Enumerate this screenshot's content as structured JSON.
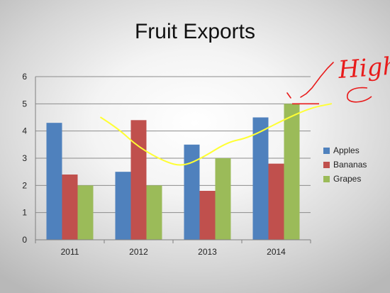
{
  "chart_data": {
    "type": "bar",
    "title": "Fruit Exports",
    "categories": [
      "2011",
      "2012",
      "2013",
      "2014"
    ],
    "series": [
      {
        "name": "Apples",
        "values": [
          4.3,
          2.5,
          3.5,
          4.5
        ],
        "color": "#4f81bd"
      },
      {
        "name": "Bananas",
        "values": [
          2.4,
          4.4,
          1.8,
          2.8
        ],
        "color": "#c0504d"
      },
      {
        "name": "Grapes",
        "values": [
          2.0,
          2.0,
          3.0,
          5.0
        ],
        "color": "#9bbb59"
      }
    ],
    "ylim": [
      0,
      6
    ],
    "yticks": [
      "0",
      "1",
      "2",
      "3",
      "4",
      "5",
      "6"
    ],
    "grid": true,
    "legend_position": "right",
    "annotations": {
      "trend_line": {
        "color": "#ffff33",
        "points": [
          [
            0.95,
            4.5
          ],
          [
            1.2,
            4.1
          ],
          [
            1.5,
            3.4
          ],
          [
            1.9,
            2.85
          ],
          [
            2.15,
            2.7
          ],
          [
            2.45,
            3.05
          ],
          [
            2.8,
            3.6
          ],
          [
            3.1,
            3.75
          ],
          [
            3.6,
            4.4
          ],
          [
            4.0,
            4.85
          ],
          [
            4.3,
            5.0
          ]
        ]
      },
      "high_line": {
        "value": 5.0,
        "color": "#e81b1b"
      },
      "note": {
        "text": "High",
        "color": "#e81b1b"
      }
    }
  }
}
